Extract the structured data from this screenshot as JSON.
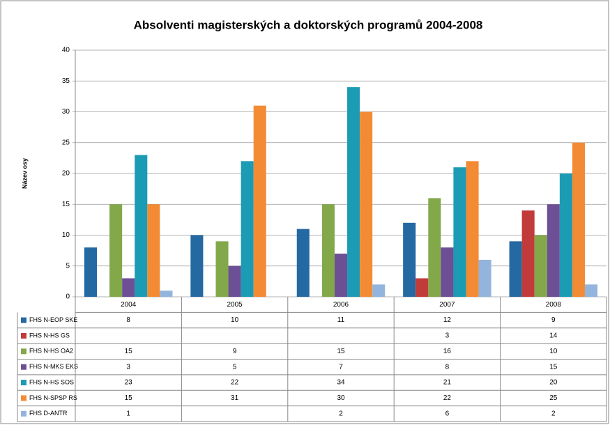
{
  "chart_data": {
    "type": "bar",
    "title": "Absolventi magisterských a doktorských programů 2004-2008",
    "y_label": "Název osy",
    "categories": [
      "2004",
      "2005",
      "2006",
      "2007",
      "2008"
    ],
    "series": [
      {
        "name": "FHS N-EOP SKE",
        "color": "#2569a3",
        "values": [
          8,
          10,
          11,
          12,
          9
        ]
      },
      {
        "name": "FHS N-HS GS",
        "color": "#c23b3b",
        "values": [
          null,
          null,
          null,
          3,
          14
        ]
      },
      {
        "name": "FHS N-HS OA2",
        "color": "#83a84a",
        "values": [
          15,
          9,
          15,
          16,
          10
        ]
      },
      {
        "name": "FHS N-MKS EKS",
        "color": "#6d4f96",
        "values": [
          3,
          5,
          7,
          8,
          15
        ]
      },
      {
        "name": "FHS N-HS SOS",
        "color": "#1c9bb4",
        "values": [
          23,
          22,
          34,
          21,
          20
        ]
      },
      {
        "name": "FHS N-SPSP RS",
        "color": "#f38b35",
        "values": [
          15,
          31,
          30,
          22,
          25
        ]
      },
      {
        "name": "FHS D-ANTR",
        "color": "#93b5dd",
        "values": [
          1,
          null,
          2,
          6,
          2
        ]
      }
    ],
    "ylim": [
      0,
      40
    ],
    "yticks": [
      0,
      5,
      10,
      15,
      20,
      25,
      30,
      35,
      40
    ],
    "grid": true
  }
}
